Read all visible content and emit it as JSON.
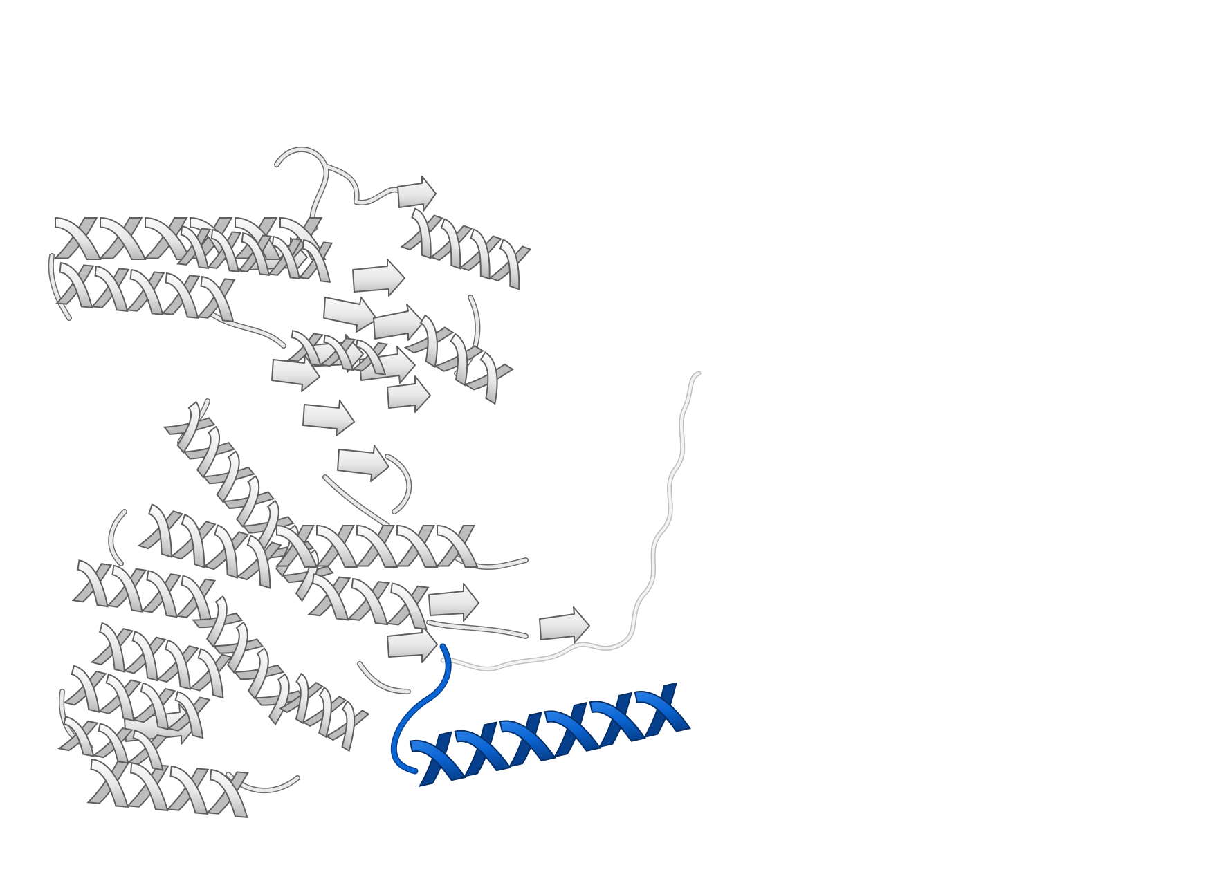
{
  "scene": {
    "background": "#ffffff",
    "colors": {
      "structure_fill": "#ececec",
      "structure_light": "#f7f7f7",
      "structure_shade": "#b4b4b4",
      "structure_edge": "#5e5e5e",
      "highlight_fill": "#0a64d2",
      "highlight_shade": "#063f8c",
      "highlight_edge": "#042e66"
    },
    "regions": [
      {
        "name": "helix-bundle-top-left",
        "color": "structure_fill"
      },
      {
        "name": "central-beta-sheet",
        "color": "structure_fill"
      },
      {
        "name": "helix-bundle-bottom-left",
        "color": "structure_fill"
      },
      {
        "name": "disordered-tail",
        "color": "structure_fill"
      },
      {
        "name": "highlighted-helix",
        "color": "highlight_fill"
      }
    ]
  }
}
